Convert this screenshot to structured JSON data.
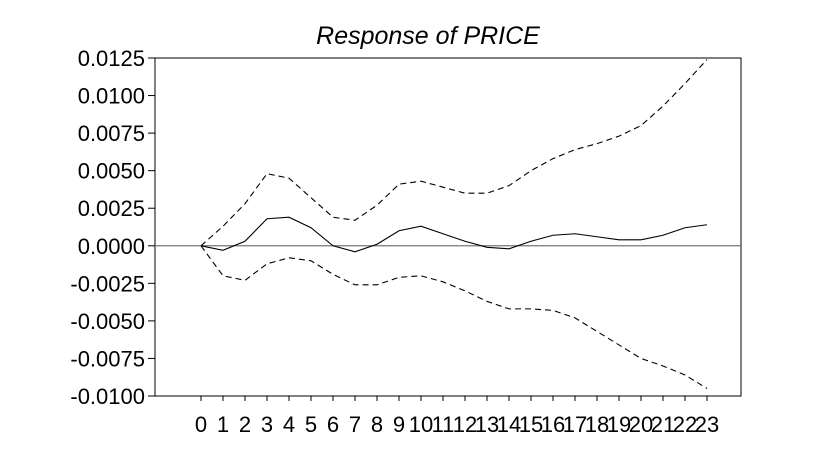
{
  "chart_data": {
    "type": "line",
    "title": "Response of PRICE",
    "xlabel": "",
    "ylabel": "",
    "x": [
      0,
      1,
      2,
      3,
      4,
      5,
      6,
      7,
      8,
      9,
      10,
      11,
      12,
      13,
      14,
      15,
      16,
      17,
      18,
      19,
      20,
      21,
      22,
      23
    ],
    "x_tick_labels": [
      "0",
      "1",
      "2",
      "3",
      "4",
      "5",
      "6",
      "7",
      "8",
      "9",
      "10",
      "11",
      "12",
      "13",
      "14",
      "15",
      "16",
      "17",
      "18",
      "19",
      "20",
      "21",
      "22",
      "23"
    ],
    "ylim": [
      -0.01,
      0.0125
    ],
    "y_ticks": [
      0.0125,
      0.01,
      0.0075,
      0.005,
      0.0025,
      0.0,
      -0.0025,
      -0.005,
      -0.0075,
      -0.01
    ],
    "y_tick_labels": [
      "0.0125",
      "0.0100",
      "0.0075",
      "0.0050",
      "0.0025",
      "0.0000",
      "-0.0025",
      "-0.0050",
      "-0.0075",
      "-0.0100"
    ],
    "grid": false,
    "zero_line": true,
    "series": [
      {
        "style": "solid",
        "values": [
          0.0,
          -0.0003,
          0.0003,
          0.0018,
          0.0019,
          0.0012,
          0.0,
          -0.0004,
          0.0001,
          0.001,
          0.0013,
          0.0008,
          0.0003,
          -0.0001,
          -0.0002,
          0.0003,
          0.0007,
          0.0008,
          0.0006,
          0.0004,
          0.0004,
          0.0007,
          0.0012,
          0.0014
        ]
      },
      {
        "style": "dashed",
        "values": [
          0.0,
          0.0013,
          0.0028,
          0.0048,
          0.0045,
          0.0032,
          0.0019,
          0.0017,
          0.0027,
          0.0041,
          0.0043,
          0.0039,
          0.0035,
          0.0035,
          0.004,
          0.005,
          0.0058,
          0.0064,
          0.0068,
          0.0073,
          0.008,
          0.0093,
          0.0108,
          0.0124
        ]
      },
      {
        "style": "dashed",
        "values": [
          0.0,
          -0.002,
          -0.0023,
          -0.0012,
          -0.0008,
          -0.001,
          -0.0019,
          -0.0026,
          -0.0026,
          -0.0021,
          -0.002,
          -0.0024,
          -0.003,
          -0.0037,
          -0.0042,
          -0.0042,
          -0.0043,
          -0.0048,
          -0.0057,
          -0.0066,
          -0.0075,
          -0.008,
          -0.0086,
          -0.0095
        ]
      }
    ]
  }
}
